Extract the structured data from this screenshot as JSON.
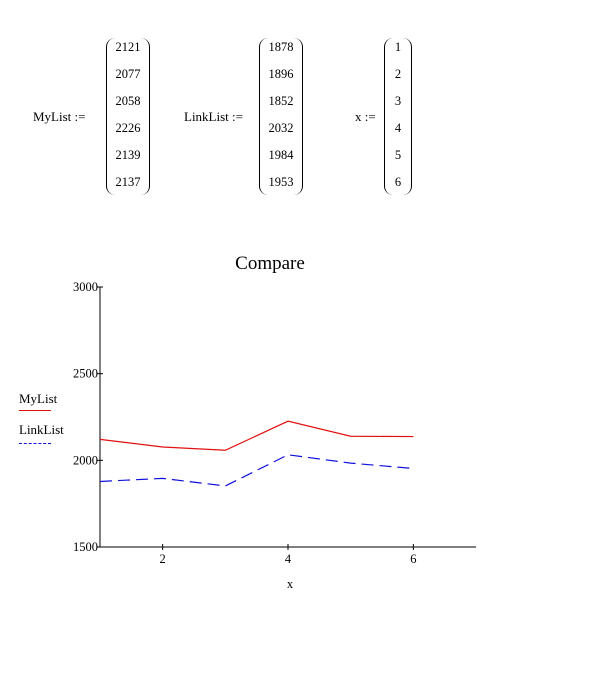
{
  "definitions": {
    "mylist": {
      "label": "MyList :=",
      "values": [
        "2121",
        "2077",
        "2058",
        "2226",
        "2139",
        "2137"
      ]
    },
    "linklist": {
      "label": "LinkList :=",
      "values": [
        "1878",
        "1896",
        "1852",
        "2032",
        "1984",
        "1953"
      ]
    },
    "x": {
      "label": "x :=",
      "values": [
        "1",
        "2",
        "3",
        "4",
        "5",
        "6"
      ]
    }
  },
  "chart_data": {
    "type": "line",
    "title": "Compare",
    "xlabel": "x",
    "ylabel": "",
    "x": [
      1,
      2,
      3,
      4,
      5,
      6
    ],
    "xlim": [
      1,
      7
    ],
    "ylim": [
      1500,
      3000
    ],
    "xticks": [
      2,
      4,
      6
    ],
    "yticks": [
      1500,
      2000,
      2500,
      3000
    ],
    "grid": false,
    "legend_position": "left",
    "series": [
      {
        "name": "MyList",
        "values": [
          2121,
          2077,
          2058,
          2226,
          2139,
          2137
        ],
        "color": "#e01010",
        "style": "solid"
      },
      {
        "name": "LinkList",
        "values": [
          1878,
          1896,
          1852,
          2032,
          1984,
          1953
        ],
        "color": "#1010e0",
        "style": "dashed"
      }
    ]
  }
}
